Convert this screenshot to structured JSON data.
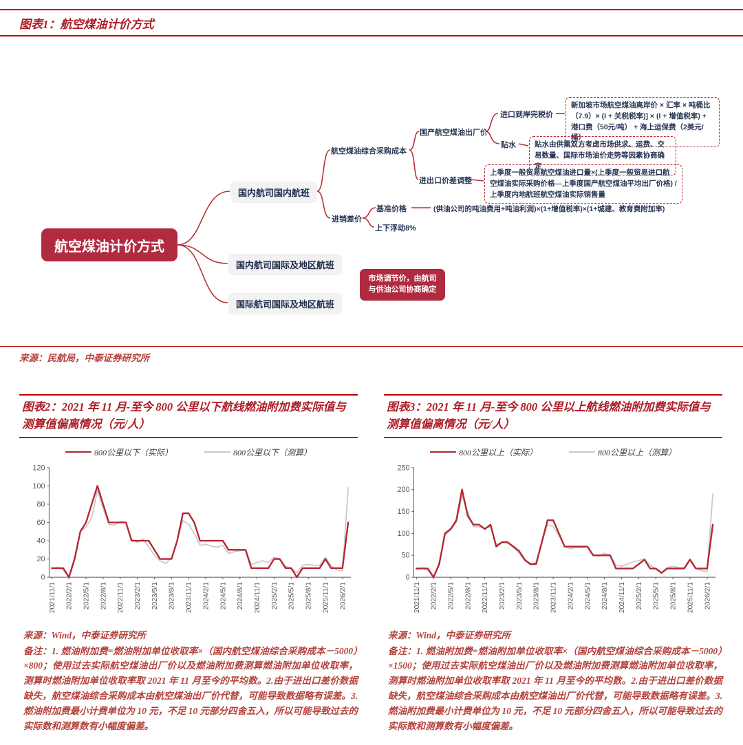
{
  "colors": {
    "rule_red": "#c00000",
    "heading_red": "#ae1c26",
    "note_red": "#b5423c",
    "node_dark_red": "#b12b40",
    "branch_red": "#b8303d",
    "gray_box": "#f2f2f2",
    "navy_text": "#2a3756",
    "series_actual_red": "#b52531",
    "series_estimated_gray": "#c9c9c9"
  },
  "figure1": {
    "heading": "图表1：航空煤油计价方式",
    "source": "来源：民航局，中泰证券研究所",
    "nodes": {
      "root": "航空煤油计价方式",
      "domestic_flights": "国内航司国内航班",
      "domestic_intl_flights": "国内航司国际及地区航班",
      "intl_intl_flights": "国际航司国际及地区航班",
      "procurement_cost": "航空煤油综合采购成本",
      "purchase_sale_spread": "进销差价",
      "exfactory_price": "国产航空煤油出厂价",
      "import_export_adjust": "进出口价差调整",
      "cif_price": "进口到岸完税价",
      "premium": "贴水",
      "base_price": "基准价格",
      "float_range": "上下浮动8%",
      "base_price_formula": "(供油公司的吨油费用+吨油利润)×(1+增值税率)×(1+城建、教育费附加率)",
      "cif_formula": "新加坡市场航空煤油离岸价 × 汇率 × 吨桶比（7.9）× (I + 关税税率)] × (I + 增值税率) + 港口费（50元/吨） + 海上运保费（2美元/桶）",
      "premium_note": "贴水由供需双方考虑市场供求、运费、交易数量、国际市场油价走势等因素协商确定",
      "import_adjust_formula": "上季度一般贸易航空煤油进口量×(上季度一般贸易进口航空煤油实际采购价格—上季度国产航空煤油平均出厂价格) / 上季度内地航班航空煤油实际销售量",
      "market_price_note": "市场调节价，由航司与供油公司协商确定"
    }
  },
  "figure2": {
    "heading": "图表2：2021 年 11 月-至今 800 公里以下航线燃油附加费实际值与测算值偏离情况（元/人）",
    "source": "来源：Wind，中泰证券研究所",
    "note": "备注：1. 燃油附加费=燃油附加单位收取率×（国内航空煤油综合采购成本－5000）×800；使用过去实际航空煤油出厂价以及燃油附加费测算燃油附加单位收取率，测算时燃油附加单位收取率取 2021 年 11 月至今的平均数。2.由于进出口差价数据缺失，航空煤油综合采购成本由航空煤油出厂价代替，可能导致数据略有误差。3. 燃油附加费最小计费单位为 10 元，不足 10 元部分四舍五入，所以可能导致过去的实际数和测算数有小幅度偏差。"
  },
  "figure3": {
    "heading": "图表3：2021 年 11 月-至今 800 公里以上航线燃油附加费实际值与测算值偏离情况（元/人）",
    "source": "来源：Wind，中泰证券研究所",
    "note": "备注：1. 燃油附加费=燃油附加单位收取率×（国内航空煤油综合采购成本－5000）×1500；使用过去实际航空煤油出厂价以及燃油附加费测算燃油附加单位收取率，测算时燃油附加单位收取率取 2021 年 11 月至今的平均数。2.由于进出口差价数据缺失，航空煤油综合采购成本由航空煤油出厂价代替，可能导致数据略有误差。3. 燃油附加费最小计费单位为 10 元，不足 10 元部分四舍五入，所以可能导致过去的实际数和测算数有小幅度偏差。"
  },
  "chart_data": [
    {
      "type": "line",
      "title": "2021 年 11 月-至今 800 公里以下航线燃油附加费实际值与测算值偏离情况（元/人）",
      "xlabel": "",
      "ylabel": "",
      "ylim": [
        0,
        120
      ],
      "ystep": 20,
      "grid": false,
      "legend_position": "top",
      "tick_every": 3,
      "x": [
        "2021/11/1",
        "2021/12/1",
        "2022/1/1",
        "2022/2/1",
        "2022/3/1",
        "2022/4/1",
        "2022/5/1",
        "2022/6/1",
        "2022/7/1",
        "2022/8/1",
        "2022/9/1",
        "2022/10/1",
        "2022/11/1",
        "2022/12/1",
        "2023/1/1",
        "2023/2/1",
        "2023/3/1",
        "2023/4/1",
        "2023/5/1",
        "2023/6/1",
        "2023/7/1",
        "2023/8/1",
        "2023/9/1",
        "2023/10/1",
        "2023/11/1",
        "2023/12/1",
        "2024/1/1",
        "2024/2/1",
        "2024/3/1",
        "2024/4/1",
        "2024/5/1",
        "2024/6/1",
        "2024/7/1",
        "2024/8/1",
        "2024/9/1",
        "2024/10/1",
        "2024/11/1",
        "2024/12/1",
        "2025/1/1",
        "2025/2/1",
        "2025/3/1",
        "2025/4/1",
        "2025/5/1",
        "2025/6/1",
        "2025/7/1",
        "2025/8/1",
        "2025/9/1",
        "2025/10/1",
        "2025/11/1",
        "2025/12/1",
        "2026/1/1",
        "2026/2/1",
        "2026/3/1"
      ],
      "series": [
        {
          "name": "800公里以下（实际）",
          "color": "#b52531",
          "values": [
            10,
            10,
            10,
            0,
            20,
            50,
            60,
            80,
            100,
            80,
            60,
            60,
            60,
            60,
            40,
            40,
            40,
            40,
            30,
            20,
            20,
            20,
            40,
            70,
            70,
            60,
            40,
            40,
            40,
            40,
            40,
            30,
            30,
            30,
            30,
            10,
            10,
            10,
            10,
            20,
            20,
            10,
            10,
            0,
            10,
            10,
            10,
            10,
            20,
            10,
            10,
            10,
            60
          ]
        },
        {
          "name": "800公里以下（测算）",
          "color": "#c9c9c9",
          "values": [
            9,
            11,
            8,
            0,
            22,
            50,
            55,
            65,
            95,
            75,
            58,
            57,
            61,
            60,
            42,
            38,
            42,
            33,
            24,
            18,
            15,
            21,
            40,
            62,
            58,
            48,
            35,
            36,
            34,
            33,
            35,
            26,
            28,
            29,
            30,
            14,
            16,
            18,
            16,
            22,
            20,
            12,
            10,
            5,
            13,
            14,
            13,
            13,
            22,
            13,
            8,
            7,
            98
          ]
        }
      ]
    },
    {
      "type": "line",
      "title": "2021 年 11 月-至今 800 公里以上航线燃油附加费实际值与测算值偏离情况（元/人）",
      "xlabel": "",
      "ylabel": "",
      "ylim": [
        0,
        250
      ],
      "ystep": 50,
      "grid": false,
      "legend_position": "top",
      "tick_every": 3,
      "x": [
        "2021/11/1",
        "2021/12/1",
        "2022/1/1",
        "2022/2/1",
        "2022/3/1",
        "2022/4/1",
        "2022/5/1",
        "2022/6/1",
        "2022/7/1",
        "2022/8/1",
        "2022/9/1",
        "2022/10/1",
        "2022/11/1",
        "2022/12/1",
        "2023/1/1",
        "2023/2/1",
        "2023/3/1",
        "2023/4/1",
        "2023/5/1",
        "2023/6/1",
        "2023/7/1",
        "2023/8/1",
        "2023/9/1",
        "2023/10/1",
        "2023/11/1",
        "2023/12/1",
        "2024/1/1",
        "2024/2/1",
        "2024/3/1",
        "2024/4/1",
        "2024/5/1",
        "2024/6/1",
        "2024/7/1",
        "2024/8/1",
        "2024/9/1",
        "2024/10/1",
        "2024/11/1",
        "2024/12/1",
        "2025/1/1",
        "2025/2/1",
        "2025/3/1",
        "2025/4/1",
        "2025/5/1",
        "2025/6/1",
        "2025/7/1",
        "2025/8/1",
        "2025/9/1",
        "2025/10/1",
        "2025/11/1",
        "2025/12/1",
        "2026/1/1",
        "2026/2/1",
        "2026/3/1"
      ],
      "series": [
        {
          "name": "800公里以上（实际）",
          "color": "#b52531",
          "values": [
            20,
            20,
            20,
            0,
            30,
            100,
            110,
            130,
            200,
            140,
            120,
            120,
            110,
            120,
            70,
            80,
            80,
            70,
            60,
            40,
            30,
            30,
            80,
            130,
            130,
            100,
            70,
            70,
            70,
            70,
            70,
            50,
            50,
            50,
            50,
            20,
            20,
            20,
            20,
            30,
            40,
            20,
            20,
            10,
            20,
            20,
            20,
            20,
            40,
            20,
            20,
            20,
            120
          ]
        },
        {
          "name": "800公里以上（测算）",
          "color": "#c9c9c9",
          "values": [
            18,
            22,
            15,
            0,
            35,
            95,
            108,
            125,
            185,
            150,
            115,
            115,
            112,
            115,
            75,
            80,
            78,
            68,
            55,
            38,
            28,
            35,
            80,
            120,
            115,
            95,
            70,
            65,
            68,
            68,
            70,
            52,
            48,
            55,
            50,
            28,
            25,
            30,
            35,
            38,
            42,
            28,
            18,
            10,
            22,
            25,
            22,
            22,
            42,
            22,
            15,
            13,
            190
          ]
        }
      ]
    }
  ]
}
